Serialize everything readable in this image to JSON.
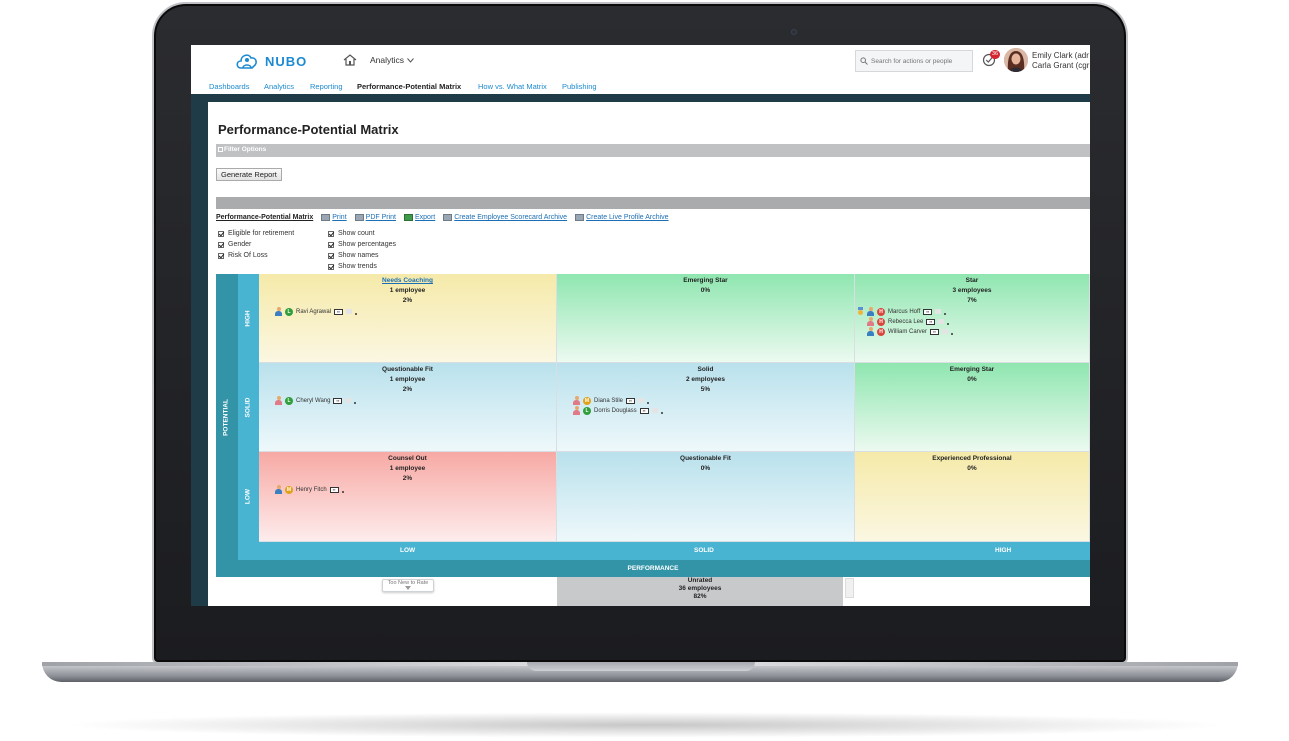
{
  "app": {
    "logo_text": "NUBO",
    "nav_menu": "Analytics",
    "search_placeholder": "Search for actions or people",
    "task_count": "36",
    "user_line1": "Emily Clark (adr",
    "user_line2": "Carla Grant (cgr"
  },
  "subnav": {
    "dashboards": "Dashboards",
    "analytics": "Analytics",
    "reporting": "Reporting",
    "ppm": "Performance-Potential Matrix",
    "howwhat": "How vs. What Matrix",
    "publishing": "Publishing"
  },
  "page": {
    "title": "Performance-Potential Matrix",
    "filter_options": "Filter Options",
    "generate_report": "Generate Report"
  },
  "toolbar": {
    "title": "Performance-Potential Matrix",
    "print": "Print",
    "pdf_print": "PDF Print",
    "export": "Export",
    "scorecard": "Create Employee Scorecard Archive",
    "live_profile": "Create Live Profile Archive"
  },
  "options": {
    "eligible": "Eligible for retirement",
    "gender": "Gender",
    "risk": "Risk Of Loss",
    "show_count": "Show count",
    "show_percentages": "Show percentages",
    "show_names": "Show names",
    "show_trends": "Show trends"
  },
  "matrix": {
    "potential": "POTENTIAL",
    "performance": "PERFORMANCE",
    "rows": {
      "high": "HIGH",
      "solid": "SOLID",
      "low": "LOW"
    },
    "cols": {
      "low": "LOW",
      "solid": "SOLID",
      "high": "HIGH"
    },
    "cells": {
      "r0c0": {
        "title": "Needs Coaching",
        "count": "1 employee",
        "pct": "2%"
      },
      "r0c1": {
        "title": "Emerging Star",
        "count": "",
        "pct": "0%"
      },
      "r0c2": {
        "title": "Star",
        "count": "3 employees",
        "pct": "7%"
      },
      "r1c0": {
        "title": "Questionable Fit",
        "count": "1 employee",
        "pct": "2%"
      },
      "r1c1": {
        "title": "Solid",
        "count": "2 employees",
        "pct": "5%"
      },
      "r1c2": {
        "title": "Emerging Star",
        "count": "",
        "pct": "0%"
      },
      "r2c0": {
        "title": "Counsel Out",
        "count": "1 employee",
        "pct": "2%"
      },
      "r2c1": {
        "title": "Questionable Fit",
        "count": "",
        "pct": "0%"
      },
      "r2c2": {
        "title": "Experienced Professional",
        "count": "",
        "pct": "0%"
      }
    },
    "employees": {
      "ravi": {
        "name": "Ravi Agrawal",
        "badge": "L"
      },
      "marcus": {
        "name": "Marcus Hoff",
        "badge": "H"
      },
      "rebecca": {
        "name": "Rebecca Lee",
        "badge": "H"
      },
      "william": {
        "name": "William Carver",
        "badge": "H"
      },
      "cheryl": {
        "name": "Cheryl Wang",
        "badge": "L"
      },
      "diana": {
        "name": "Diana Stile",
        "badge": "M"
      },
      "dorris": {
        "name": "Dorris Douglass",
        "badge": "L"
      },
      "henry": {
        "name": "Henry Fitch",
        "badge": "M"
      }
    },
    "badge_colors": {
      "L": "#2f9e3b",
      "M": "#e0a11b",
      "H": "#d9463c"
    }
  },
  "bottom": {
    "too_new": "Too New to Rate",
    "unrated_title": "Unrated",
    "unrated_count": "36 employees",
    "unrated_pct": "82%"
  }
}
